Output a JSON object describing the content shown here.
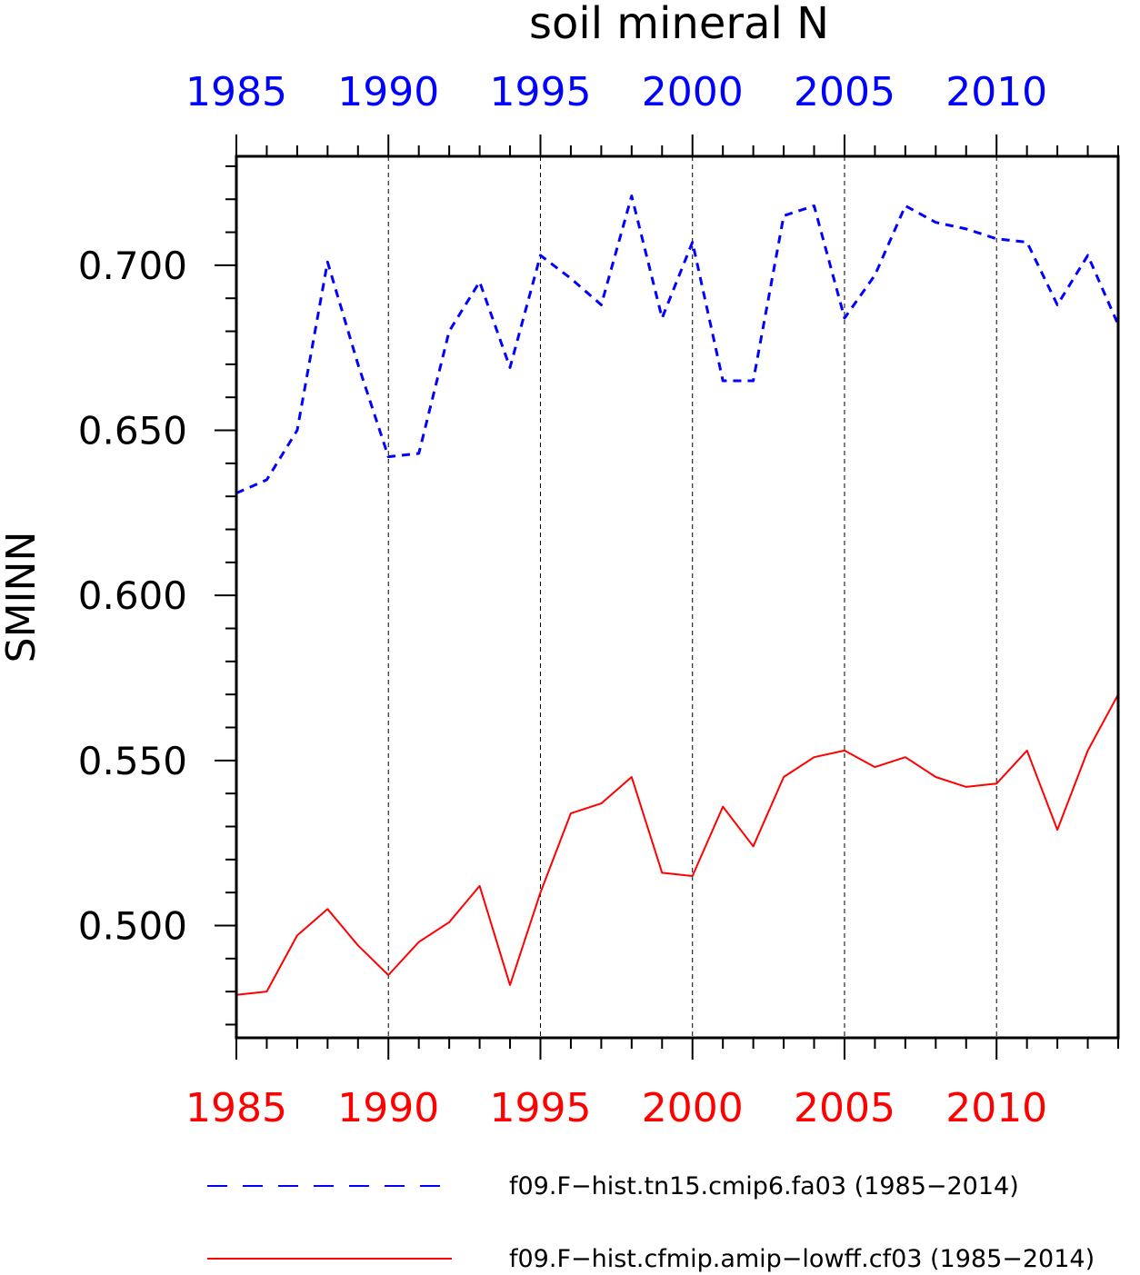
{
  "chart_data": {
    "type": "line",
    "title": "soil mineral N",
    "ylabel": "SMINN",
    "xlabel": "",
    "xlim": [
      1985,
      2014
    ],
    "ylim": [
      0.466,
      0.733
    ],
    "x_ticks": [
      1985,
      1990,
      1995,
      2000,
      2005,
      2010
    ],
    "x_tick_labels": [
      "1985",
      "1990",
      "1995",
      "2000",
      "2005",
      "2010"
    ],
    "y_ticks": [
      0.5,
      0.55,
      0.6,
      0.65,
      0.7
    ],
    "y_tick_labels": [
      "0.500",
      "0.550",
      "0.600",
      "0.650",
      "0.700"
    ],
    "top_axis_color": "#0000ff",
    "bottom_axis_color": "#ff0000",
    "grid": "vertical dashed at major x ticks",
    "legend_position": "bottom",
    "x": [
      1985,
      1986,
      1987,
      1988,
      1989,
      1990,
      1991,
      1992,
      1993,
      1994,
      1995,
      1996,
      1997,
      1998,
      1999,
      2000,
      2001,
      2002,
      2003,
      2004,
      2005,
      2006,
      2007,
      2008,
      2009,
      2010,
      2011,
      2012,
      2013,
      2014
    ],
    "series": [
      {
        "name": "f09.F−hist.tn15.cmip6.fa03 (1985−2014)",
        "color": "#0000ff",
        "style": "dashed",
        "values": [
          0.631,
          0.635,
          0.65,
          0.701,
          0.67,
          0.642,
          0.643,
          0.68,
          0.695,
          0.669,
          0.703,
          0.696,
          0.688,
          0.721,
          0.684,
          0.707,
          0.665,
          0.665,
          0.715,
          0.718,
          0.684,
          0.697,
          0.718,
          0.713,
          0.711,
          0.708,
          0.707,
          0.688,
          0.703,
          0.682
        ]
      },
      {
        "name": "f09.F−hist.cfmip.amip−lowff.cf03 (1985−2014)",
        "color": "#ff0000",
        "style": "solid",
        "values": [
          0.479,
          0.48,
          0.497,
          0.505,
          0.494,
          0.485,
          0.495,
          0.501,
          0.512,
          0.482,
          0.51,
          0.534,
          0.537,
          0.545,
          0.516,
          0.515,
          0.536,
          0.524,
          0.545,
          0.551,
          0.553,
          0.548,
          0.551,
          0.545,
          0.542,
          0.543,
          0.553,
          0.529,
          0.553,
          0.57
        ]
      }
    ]
  }
}
